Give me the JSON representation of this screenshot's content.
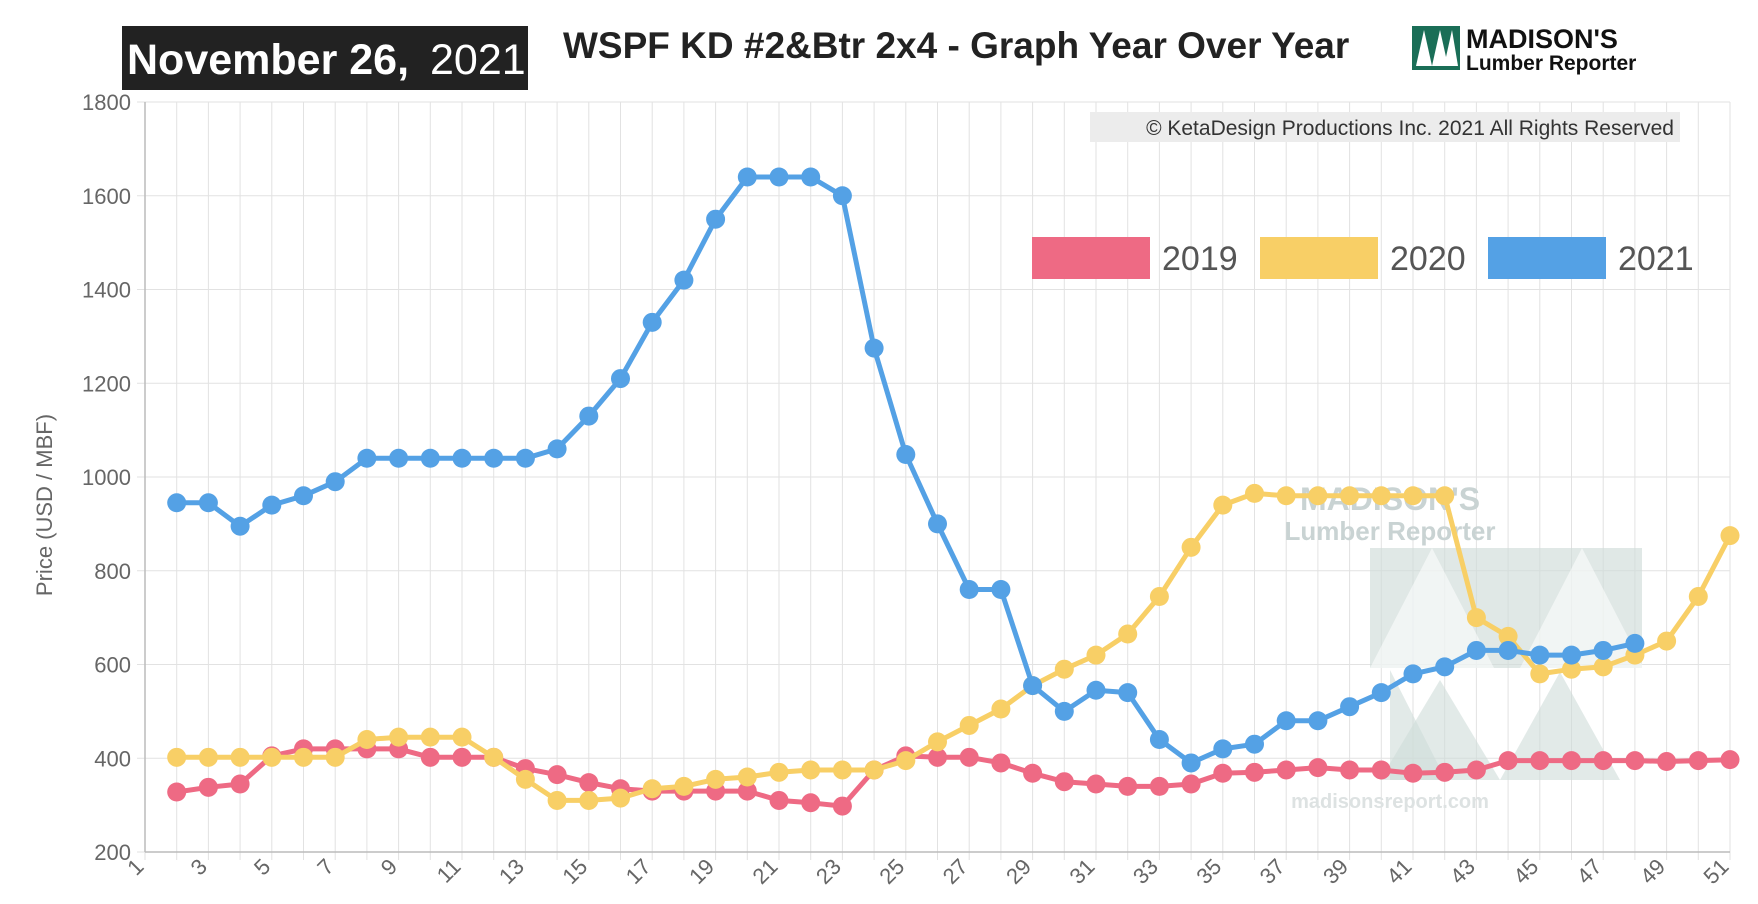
{
  "header": {
    "date_bold": "November 26,",
    "date_year": "2021",
    "title": "WSPF KD #2&Btr 2x4 - Graph Year Over Year",
    "logo_line1": "MADISON'S",
    "logo_line2": "Lumber Reporter",
    "copyright": "© KetaDesign Productions Inc. 2021 All Rights Reserved"
  },
  "watermark": {
    "line1": "MADISON'S",
    "line2": "Lumber Reporter",
    "url": "madisonsreport.com"
  },
  "colors": {
    "s2019": "#ee6a84",
    "s2020": "#f8cf66",
    "s2021": "#54a1e5",
    "grid": "#e2e2e2",
    "date_box": "#222222",
    "logo_green": "#1a6e57"
  },
  "chart_data": {
    "type": "line",
    "title": "WSPF KD #2&Btr 2x4 - Graph Year Over Year",
    "xlabel": "",
    "ylabel": "Price (USD / MBF)",
    "xlim": [
      1,
      51
    ],
    "ylim": [
      200,
      1800
    ],
    "y_ticks": [
      200,
      400,
      600,
      800,
      1000,
      1200,
      1400,
      1600,
      1800
    ],
    "x_ticks": [
      1,
      3,
      5,
      7,
      9,
      11,
      13,
      15,
      17,
      19,
      21,
      23,
      25,
      27,
      29,
      31,
      33,
      35,
      37,
      39,
      41,
      43,
      45,
      47,
      49,
      51
    ],
    "grid": true,
    "legend_position": "top-right",
    "series": [
      {
        "name": "2019",
        "color": "#ee6a84",
        "x": [
          2,
          3,
          4,
          5,
          6,
          7,
          8,
          9,
          10,
          11,
          12,
          13,
          14,
          15,
          16,
          17,
          18,
          19,
          20,
          21,
          22,
          23,
          24,
          25,
          26,
          27,
          28,
          29,
          30,
          31,
          32,
          33,
          34,
          35,
          36,
          37,
          38,
          39,
          40,
          41,
          42,
          43,
          44,
          45,
          46,
          47,
          48,
          49,
          50,
          51
        ],
        "values": [
          328,
          338,
          345,
          405,
          420,
          420,
          420,
          420,
          402,
          402,
          402,
          378,
          365,
          348,
          335,
          330,
          330,
          330,
          330,
          310,
          305,
          298,
          375,
          405,
          402,
          402,
          390,
          368,
          350,
          345,
          340,
          340,
          345,
          368,
          370,
          375,
          380,
          375,
          375,
          368,
          370,
          375,
          395,
          395,
          395,
          395,
          395,
          393,
          395,
          397
        ]
      },
      {
        "name": "2020",
        "color": "#f8cf66",
        "x": [
          2,
          3,
          4,
          5,
          6,
          7,
          8,
          9,
          10,
          11,
          12,
          13,
          14,
          15,
          16,
          17,
          18,
          19,
          20,
          21,
          22,
          23,
          24,
          25,
          26,
          27,
          28,
          29,
          30,
          31,
          32,
          33,
          34,
          35,
          36,
          37,
          38,
          39,
          40,
          41,
          42,
          43,
          44,
          45,
          46,
          47,
          48,
          49,
          50,
          51
        ],
        "values": [
          402,
          402,
          402,
          402,
          402,
          402,
          440,
          445,
          445,
          445,
          402,
          355,
          310,
          310,
          315,
          335,
          340,
          355,
          360,
          370,
          375,
          375,
          375,
          395,
          435,
          470,
          505,
          555,
          590,
          620,
          665,
          745,
          850,
          940,
          965,
          960,
          960,
          960,
          960,
          960,
          960,
          700,
          660,
          580,
          590,
          595,
          620,
          650,
          745,
          875
        ]
      },
      {
        "name": "2021",
        "color": "#54a1e5",
        "x": [
          2,
          3,
          4,
          5,
          6,
          7,
          8,
          9,
          10,
          11,
          12,
          13,
          14,
          15,
          16,
          17,
          18,
          19,
          20,
          21,
          22,
          23,
          24,
          25,
          26,
          27,
          28,
          29,
          30,
          31,
          32,
          33,
          34,
          35,
          36,
          37,
          38,
          39,
          40,
          41,
          42,
          43,
          44,
          45,
          46,
          47,
          48
        ],
        "values": [
          945,
          945,
          895,
          940,
          960,
          990,
          1040,
          1040,
          1040,
          1040,
          1040,
          1040,
          1060,
          1130,
          1210,
          1330,
          1420,
          1550,
          1640,
          1640,
          1640,
          1600,
          1275,
          1048,
          900,
          760,
          760,
          555,
          500,
          545,
          540,
          440,
          390,
          420,
          430,
          480,
          480,
          510,
          540,
          580,
          595,
          630,
          630,
          620,
          620,
          630,
          645
        ]
      }
    ]
  }
}
